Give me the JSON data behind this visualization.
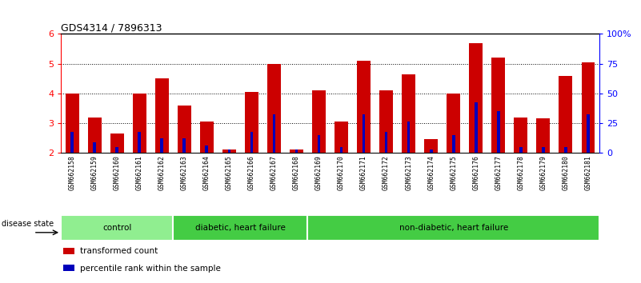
{
  "title": "GDS4314 / 7896313",
  "samples": [
    "GSM662158",
    "GSM662159",
    "GSM662160",
    "GSM662161",
    "GSM662162",
    "GSM662163",
    "GSM662164",
    "GSM662165",
    "GSM662166",
    "GSM662167",
    "GSM662168",
    "GSM662169",
    "GSM662170",
    "GSM662171",
    "GSM662172",
    "GSM662173",
    "GSM662174",
    "GSM662175",
    "GSM662176",
    "GSM662177",
    "GSM662178",
    "GSM662179",
    "GSM662180",
    "GSM662181"
  ],
  "transformed_count": [
    4.0,
    3.2,
    2.65,
    4.0,
    4.5,
    3.6,
    3.05,
    2.1,
    4.05,
    5.0,
    2.1,
    4.1,
    3.05,
    5.1,
    4.1,
    4.65,
    2.45,
    4.0,
    5.7,
    5.2,
    3.2,
    3.15,
    4.6,
    5.05
  ],
  "percentile_rank": [
    2.7,
    2.35,
    2.2,
    2.7,
    2.5,
    2.5,
    2.25,
    2.1,
    2.7,
    3.3,
    2.1,
    2.6,
    2.2,
    3.3,
    2.7,
    3.05,
    2.1,
    2.6,
    3.7,
    3.4,
    2.2,
    2.2,
    2.2,
    3.3
  ],
  "groups": [
    {
      "label": "control",
      "start": 0,
      "end": 5,
      "color": "#90EE90"
    },
    {
      "label": "diabetic, heart failure",
      "start": 5,
      "end": 11,
      "color": "#44CC44"
    },
    {
      "label": "non-diabetic, heart failure",
      "start": 11,
      "end": 24,
      "color": "#44CC44"
    }
  ],
  "bar_color_red": "#CC0000",
  "bar_color_blue": "#0000BB",
  "ylim_left": [
    2,
    6
  ],
  "ylim_right": [
    0,
    100
  ],
  "yticks_left": [
    2,
    3,
    4,
    5,
    6
  ],
  "yticks_right": [
    0,
    25,
    50,
    75,
    100
  ],
  "yticklabels_right": [
    "0",
    "25",
    "50",
    "75",
    "100%"
  ],
  "bar_width": 0.6,
  "background_color": "#ffffff",
  "xtick_area_color": "#CCCCCC",
  "group_divider_color": "#007700"
}
